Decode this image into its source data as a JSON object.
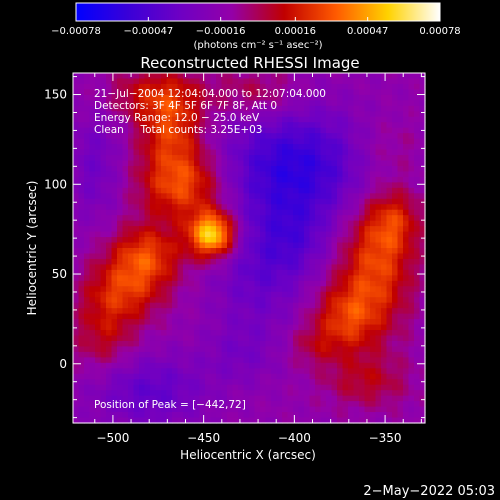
{
  "chart_data": {
    "type": "heatmap",
    "title": "Reconstructed RHESSI Image",
    "xlabel": "Heliocentric X (arcsec)",
    "ylabel": "Heliocentric Y (arcsec)",
    "xlim": [
      -522,
      -328
    ],
    "ylim": [
      -33,
      162
    ],
    "x_ticks": [
      -500,
      -450,
      -400,
      -350
    ],
    "x_tick_labels": [
      "−500",
      "−450",
      "−400",
      "−350"
    ],
    "y_ticks": [
      0,
      50,
      100,
      150
    ],
    "y_tick_labels": [
      "0",
      "50",
      "100",
      "150"
    ],
    "colorbar": {
      "range": [
        -0.00078,
        0.00078
      ],
      "ticks": [
        -0.00078,
        -0.00047,
        -0.00016,
        0.00016,
        0.00047,
        0.00078
      ],
      "tick_labels": [
        "−0.00078",
        "−0.00047",
        "−0.00016",
        "0.00016",
        "0.00047",
        "0.00078"
      ],
      "units": "(photons cm⁻² s⁻¹ asec⁻²)",
      "colormap": [
        "#0000ff",
        "#3a00d8",
        "#6e00c4",
        "#9400a8",
        "#c00000",
        "#ff5a00",
        "#ffd200",
        "#ffffff"
      ]
    },
    "annotations": [
      "21−Jul−2004 12:04:04.000 to 12:07:04.000",
      "Detectors: 3F 4F 5F 6F 7F 8F, Att 0",
      "Energy Range: 12.0 − 25.0 keV",
      "Clean     Total counts: 3.25E+03"
    ],
    "peak_label": "Position of Peak = [−442,72]",
    "peak": {
      "x": -442,
      "y": 72
    },
    "sources": [
      {
        "x": -445,
        "y": 72,
        "sx": 9,
        "sy": 9,
        "amp": 0.00076
      },
      {
        "x": -462,
        "y": 100,
        "sx": 16,
        "sy": 14,
        "amp": 0.00045
      },
      {
        "x": -482,
        "y": 60,
        "sx": 14,
        "sy": 12,
        "amp": 0.0004
      },
      {
        "x": -495,
        "y": 40,
        "sx": 15,
        "sy": 12,
        "amp": 0.00032
      },
      {
        "x": -468,
        "y": 130,
        "sx": 12,
        "sy": 14,
        "amp": 0.00035
      },
      {
        "x": -505,
        "y": 15,
        "sx": 12,
        "sy": 14,
        "amp": 0.00022
      },
      {
        "x": -475,
        "y": 150,
        "sx": 18,
        "sy": 10,
        "amp": 0.00028
      },
      {
        "x": -420,
        "y": 150,
        "sx": 16,
        "sy": 10,
        "amp": 0.00018
      },
      {
        "x": -355,
        "y": 55,
        "sx": 14,
        "sy": 24,
        "amp": 0.0004
      },
      {
        "x": -372,
        "y": 25,
        "sx": 13,
        "sy": 14,
        "amp": 0.00034
      },
      {
        "x": -345,
        "y": 80,
        "sx": 10,
        "sy": 12,
        "amp": 0.00026
      },
      {
        "x": -360,
        "y": -10,
        "sx": 16,
        "sy": 10,
        "amp": 0.0002
      },
      {
        "x": -390,
        "y": 10,
        "sx": 10,
        "sy": 8,
        "amp": 0.00014
      },
      {
        "x": -350,
        "y": 120,
        "sx": 14,
        "sy": 12,
        "amp": 0.0001
      },
      {
        "x": -400,
        "y": 110,
        "sx": 28,
        "sy": 22,
        "amp": -0.00045
      },
      {
        "x": -420,
        "y": 50,
        "sx": 18,
        "sy": 24,
        "amp": -0.00022
      },
      {
        "x": -400,
        "y": 70,
        "sx": 14,
        "sy": 16,
        "amp": -0.0002
      },
      {
        "x": -480,
        "y": -15,
        "sx": 22,
        "sy": 14,
        "amp": -0.00025
      },
      {
        "x": -510,
        "y": 110,
        "sx": 10,
        "sy": 22,
        "amp": -0.00018
      },
      {
        "x": -430,
        "y": 5,
        "sx": 14,
        "sy": 12,
        "amp": -0.00012
      }
    ],
    "baseline": -0.00014
  },
  "timestamp": "2−May−2022 05:03"
}
